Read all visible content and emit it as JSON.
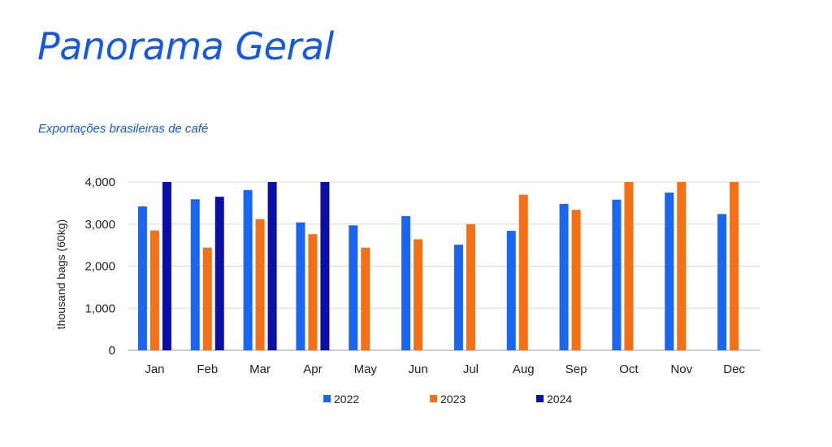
{
  "header": {
    "title": "Panorama Geral",
    "subtitle": "Exportações brasileiras de café"
  },
  "chart_data": {
    "type": "bar",
    "title": "",
    "xlabel": "",
    "ylabel": "thousand bags (60kg)",
    "ylim": [
      0,
      4000
    ],
    "yticks": [
      0,
      1000,
      2000,
      3000,
      4000
    ],
    "ytick_labels": [
      "0",
      "1,000",
      "2,000",
      "3,000",
      "4,000"
    ],
    "grid": true,
    "legend_position": "bottom",
    "categories": [
      "Jan",
      "Feb",
      "Mar",
      "Apr",
      "May",
      "Jun",
      "Jul",
      "Aug",
      "Sep",
      "Oct",
      "Nov",
      "Dec"
    ],
    "series": [
      {
        "name": "2022",
        "color": "#1a66f0",
        "values": [
          3420,
          3590,
          3810,
          3040,
          2970,
          3190,
          2510,
          2840,
          3480,
          3580,
          3750,
          3240
        ]
      },
      {
        "name": "2023",
        "color": "#f57014",
        "values": [
          2850,
          2440,
          3120,
          2760,
          2440,
          2640,
          3000,
          3700,
          3340,
          4000,
          4000,
          4000
        ]
      },
      {
        "name": "2024",
        "color": "#0c0ea8",
        "values": [
          4000,
          3650,
          4000,
          4000,
          null,
          null,
          null,
          null,
          null,
          null,
          null,
          null
        ]
      }
    ]
  }
}
